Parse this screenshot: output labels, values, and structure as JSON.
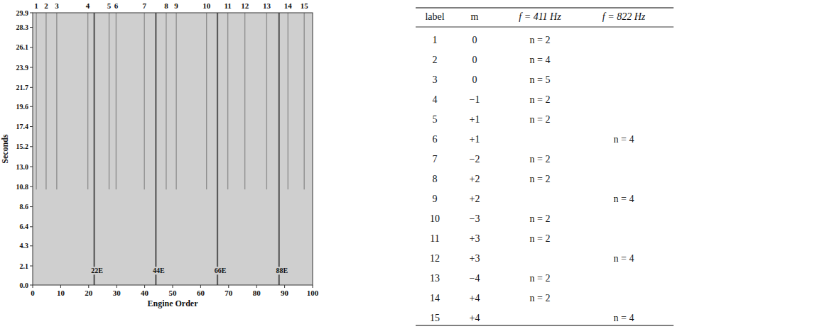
{
  "chart_data": {
    "type": "spectrogram",
    "x_label": "Engine Order",
    "y_label": "Seconds",
    "xlim": [
      0,
      100
    ],
    "xticks": [
      0,
      10,
      20,
      30,
      40,
      50,
      60,
      70,
      80,
      90,
      100
    ],
    "ylim": [
      0,
      29.9
    ],
    "yticks": [
      {
        "value": 0,
        "label": "0.0"
      },
      2.1,
      4.3,
      6.4,
      8.6,
      10.8,
      {
        "value": 13,
        "label": "13.0"
      },
      15.2,
      17.4,
      19.6,
      21.7,
      23.9,
      26.1,
      28.3,
      29.9
    ],
    "series": [
      {
        "name": "1",
        "x": 1.3,
        "onset": 10.5
      },
      {
        "name": "2",
        "x": 4.8,
        "onset": 10.5
      },
      {
        "name": "3",
        "x": 8.6,
        "onset": 10.5
      },
      {
        "name": "4",
        "x": 19.7,
        "onset": 10.5
      },
      {
        "name": "5",
        "x": 27.3,
        "onset": 10.5
      },
      {
        "name": "6",
        "x": 29.8,
        "onset": 10.5
      },
      {
        "name": "7",
        "x": 39.9,
        "onset": 10.5
      },
      {
        "name": "8",
        "x": 47.7,
        "onset": 10.5
      },
      {
        "name": "9",
        "x": 51.3,
        "onset": 10.5
      },
      {
        "name": "10",
        "x": 62.1,
        "onset": 10.5
      },
      {
        "name": "11",
        "x": 69.7,
        "onset": 10.5
      },
      {
        "name": "12",
        "x": 75.8,
        "onset": 10.5
      },
      {
        "name": "13",
        "x": 83.6,
        "onset": 10.5
      },
      {
        "name": "14",
        "x": 91.2,
        "onset": 10.5
      },
      {
        "name": "15",
        "x": 97.0,
        "onset": 10.5
      }
    ],
    "annotations": [
      {
        "text": "22E",
        "x": 22,
        "y": 1.3
      },
      {
        "text": "44E",
        "x": 44,
        "y": 1.3
      },
      {
        "text": "66E",
        "x": 66,
        "y": 1.3
      },
      {
        "text": "88E",
        "x": 88,
        "y": 1.3
      }
    ]
  },
  "table": {
    "columns": [
      "label",
      "m",
      "f = 411 Hz",
      "f = 822 Hz"
    ],
    "rows": [
      [
        "1",
        "0",
        "n = 2",
        null
      ],
      [
        "2",
        "0",
        "n = 4",
        null
      ],
      [
        "3",
        "0",
        "n = 5",
        null
      ],
      [
        "4",
        "−1",
        "n = 2",
        null
      ],
      [
        "5",
        "+1",
        "n = 2",
        null
      ],
      [
        "6",
        "+1",
        null,
        "n = 4"
      ],
      [
        "7",
        "−2",
        "n = 2",
        null
      ],
      [
        "8",
        "+2",
        "n = 2",
        null
      ],
      [
        "9",
        "+2",
        null,
        "n = 4"
      ],
      [
        "10",
        "−3",
        "n = 2",
        null
      ],
      [
        "11",
        "+3",
        "n = 2",
        null
      ],
      [
        "12",
        "+3",
        null,
        "n = 4"
      ],
      [
        "13",
        "−4",
        "n = 2",
        null
      ],
      [
        "14",
        "+4",
        "n = 2",
        null
      ],
      [
        "15",
        "+4",
        null,
        "n = 4"
      ]
    ]
  }
}
